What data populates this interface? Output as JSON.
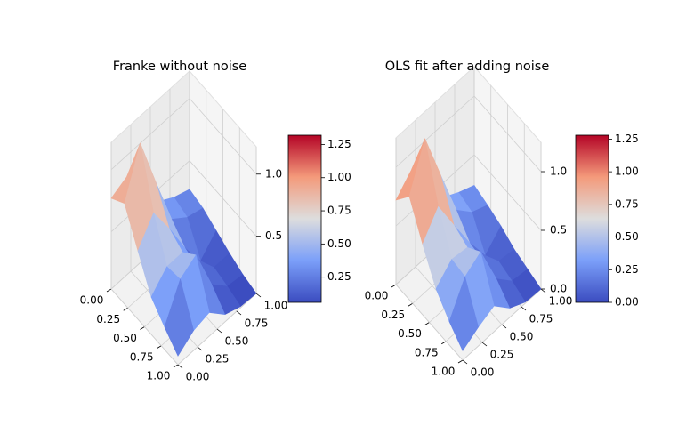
{
  "chart_data": [
    {
      "type": "surface3d",
      "title": "Franke without noise",
      "x": [
        0,
        0.2,
        0.4,
        0.6,
        0.8,
        1
      ],
      "y": [
        0,
        0.2,
        0.4,
        0.6,
        0.8,
        1
      ],
      "z": [
        [
          0.77,
          0.83,
          0.61,
          0.4,
          0.32,
          0.27
        ],
        [
          0.85,
          1.22,
          0.79,
          0.38,
          0.28,
          0.24
        ],
        [
          0.59,
          0.78,
          0.54,
          0.27,
          0.05,
          0.18
        ],
        [
          0.34,
          0.47,
          0.47,
          0.23,
          0.12,
          0.12
        ],
        [
          0.22,
          0.49,
          0.57,
          0.22,
          0.09,
          0.07
        ],
        [
          0.11,
          0.2,
          0.23,
          0.1,
          0.05,
          0.04
        ]
      ],
      "xlim": [
        0,
        1
      ],
      "ylim": [
        0,
        1
      ],
      "zlim": [
        0.04,
        1.22
      ],
      "xticks": [
        {
          "value": 0,
          "label": "0.00"
        },
        {
          "value": 0.25,
          "label": "0.25"
        },
        {
          "value": 0.5,
          "label": "0.50"
        },
        {
          "value": 0.75,
          "label": "0.75"
        },
        {
          "value": 1,
          "label": "1.00"
        }
      ],
      "yticks": [
        {
          "value": 0,
          "label": "0.00"
        },
        {
          "value": 0.25,
          "label": "0.25"
        },
        {
          "value": 0.5,
          "label": "0.50"
        },
        {
          "value": 0.75,
          "label": "0.75"
        },
        {
          "value": 1,
          "label": "1.00"
        }
      ],
      "zticks": [
        0.5,
        {
          "value": 1,
          "label": "1.0"
        }
      ],
      "colormap": [
        "#3b4cc0",
        "#7b9ff9",
        "#dddddd",
        "#f49a7b",
        "#b40426"
      ],
      "colorbar": {
        "clim": [
          0.06,
          1.32
        ],
        "ticks": [
          {
            "value": 0.25,
            "label": "0.25"
          },
          {
            "value": 0.5,
            "label": "0.50"
          },
          {
            "value": 0.75,
            "label": "0.75"
          },
          {
            "value": 1,
            "label": "1.00"
          },
          {
            "value": 1.25,
            "label": "1.25"
          }
        ]
      }
    },
    {
      "type": "surface3d",
      "title": "OLS fit after adding noise",
      "x": [
        0,
        0.2,
        0.4,
        0.6,
        0.8,
        1
      ],
      "y": [
        0,
        0.2,
        0.4,
        0.6,
        0.8,
        1
      ],
      "z": [
        [
          0.72,
          0.86,
          0.6,
          0.38,
          0.3,
          0.24
        ],
        [
          0.88,
          1.25,
          0.82,
          0.4,
          0.26,
          0.2
        ],
        [
          0.6,
          0.8,
          0.52,
          0.25,
          0.02,
          0.15
        ],
        [
          0.35,
          0.48,
          0.46,
          0.22,
          0.1,
          0.08
        ],
        [
          0.2,
          0.46,
          0.55,
          0.2,
          0.06,
          0.04
        ],
        [
          0.08,
          0.16,
          0.22,
          0.08,
          0.01,
          0
        ]
      ],
      "xlim": [
        0,
        1
      ],
      "ylim": [
        0,
        1
      ],
      "zlim": [
        0,
        1.25
      ],
      "xticks": [
        {
          "value": 0,
          "label": "0.00"
        },
        {
          "value": 0.25,
          "label": "0.25"
        },
        {
          "value": 0.5,
          "label": "0.50"
        },
        {
          "value": 0.75,
          "label": "0.75"
        },
        {
          "value": 1,
          "label": "1.00"
        }
      ],
      "yticks": [
        {
          "value": 0,
          "label": "0.00"
        },
        {
          "value": 0.25,
          "label": "0.25"
        },
        {
          "value": 0.5,
          "label": "0.50"
        },
        {
          "value": 0.75,
          "label": "0.75"
        },
        {
          "value": 1,
          "label": "1.00"
        }
      ],
      "zticks": [
        {
          "value": 0,
          "label": "0.0"
        },
        0.5,
        {
          "value": 1,
          "label": "1.0"
        }
      ],
      "colormap": [
        "#3b4cc0",
        "#7b9ff9",
        "#dddddd",
        "#f49a7b",
        "#b40426"
      ],
      "colorbar": {
        "clim": [
          0,
          1.28
        ],
        "ticks": [
          {
            "value": 0,
            "label": "0.00"
          },
          {
            "value": 0.25,
            "label": "0.25"
          },
          {
            "value": 0.5,
            "label": "0.50"
          },
          {
            "value": 0.75,
            "label": "0.75"
          },
          {
            "value": 1,
            "label": "1.00"
          },
          {
            "value": 1.25,
            "label": "1.25"
          }
        ]
      }
    }
  ]
}
